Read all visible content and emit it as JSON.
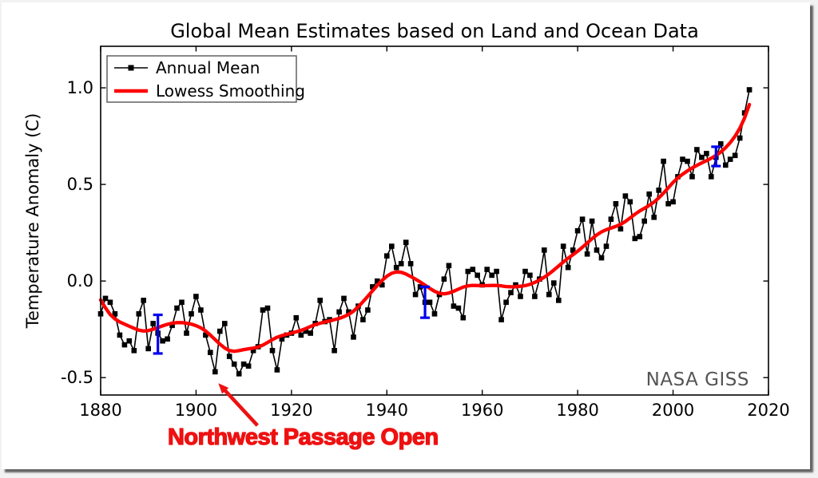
{
  "page": {
    "background": "#f2f2f2",
    "card_background": "#ffffff",
    "shadow_color": "#2d2d2d"
  },
  "chart_data": {
    "type": "line",
    "title": "Global Mean Estimates based on Land and Ocean Data",
    "xlabel": "",
    "ylabel": "Temperature Anomaly (C)",
    "watermark": "NASA GISS",
    "watermark_color": "#545454",
    "grid": false,
    "legend_position": "upper left",
    "legend": [
      {
        "label": "Annual Mean",
        "color": "#000000",
        "marker": "square",
        "line_style": "thin"
      },
      {
        "label": "Lowess Smoothing",
        "color": "#ff0000",
        "marker": "none",
        "line_style": "thick"
      }
    ],
    "xlim": [
      1880,
      2020
    ],
    "ylim": [
      -0.59,
      1.215
    ],
    "xticks": [
      1880,
      1900,
      1920,
      1940,
      1960,
      1980,
      2000,
      2020
    ],
    "ytick_values": [
      -0.5,
      0.0,
      0.5,
      1.0
    ],
    "ytick_labels": [
      "-0.5",
      "0.0",
      "0.5",
      "1.0"
    ],
    "series": [
      {
        "name": "Annual Mean",
        "color": "#000000",
        "marker": "square",
        "start_year": 1880,
        "end_year": 2016,
        "values": [
          -0.17,
          -0.09,
          -0.11,
          -0.17,
          -0.28,
          -0.33,
          -0.31,
          -0.36,
          -0.17,
          -0.1,
          -0.35,
          -0.22,
          -0.27,
          -0.31,
          -0.3,
          -0.23,
          -0.14,
          -0.11,
          -0.27,
          -0.17,
          -0.08,
          -0.15,
          -0.28,
          -0.37,
          -0.47,
          -0.26,
          -0.22,
          -0.39,
          -0.43,
          -0.48,
          -0.43,
          -0.44,
          -0.36,
          -0.34,
          -0.15,
          -0.14,
          -0.36,
          -0.46,
          -0.3,
          -0.28,
          -0.27,
          -0.19,
          -0.28,
          -0.26,
          -0.27,
          -0.22,
          -0.1,
          -0.21,
          -0.2,
          -0.36,
          -0.16,
          -0.09,
          -0.16,
          -0.29,
          -0.13,
          -0.2,
          -0.15,
          -0.03,
          0.0,
          -0.02,
          0.13,
          0.18,
          0.07,
          0.09,
          0.2,
          0.09,
          -0.07,
          -0.03,
          -0.11,
          -0.11,
          -0.17,
          -0.07,
          0.01,
          0.08,
          -0.13,
          -0.14,
          -0.19,
          0.05,
          0.06,
          0.03,
          -0.02,
          0.06,
          0.03,
          0.05,
          -0.2,
          -0.11,
          -0.06,
          -0.02,
          -0.08,
          0.05,
          0.03,
          -0.08,
          0.01,
          0.16,
          -0.07,
          -0.01,
          -0.1,
          0.18,
          0.07,
          0.16,
          0.26,
          0.32,
          0.14,
          0.31,
          0.16,
          0.12,
          0.18,
          0.32,
          0.4,
          0.27,
          0.44,
          0.41,
          0.22,
          0.23,
          0.31,
          0.45,
          0.33,
          0.47,
          0.62,
          0.4,
          0.41,
          0.54,
          0.63,
          0.62,
          0.54,
          0.68,
          0.64,
          0.66,
          0.54,
          0.64,
          0.71,
          0.6,
          0.63,
          0.65,
          0.74,
          0.87,
          0.99
        ]
      },
      {
        "name": "Lowess Smoothing",
        "color": "#ff0000",
        "derived_from": "Annual Mean",
        "method": "lowess",
        "window_years": 9
      }
    ],
    "error_bars": {
      "color": "#0000ee",
      "points": [
        {
          "year": 1892,
          "center": -0.275,
          "half_range": 0.1
        },
        {
          "year": 1948,
          "center": -0.11,
          "half_range": 0.08
        },
        {
          "year": 2009,
          "center": 0.645,
          "half_range": 0.05
        }
      ]
    },
    "annotation": {
      "text": "Northwest Passage Open",
      "color": "#ee1111",
      "target_year": 1904,
      "target_value": -0.5
    }
  }
}
